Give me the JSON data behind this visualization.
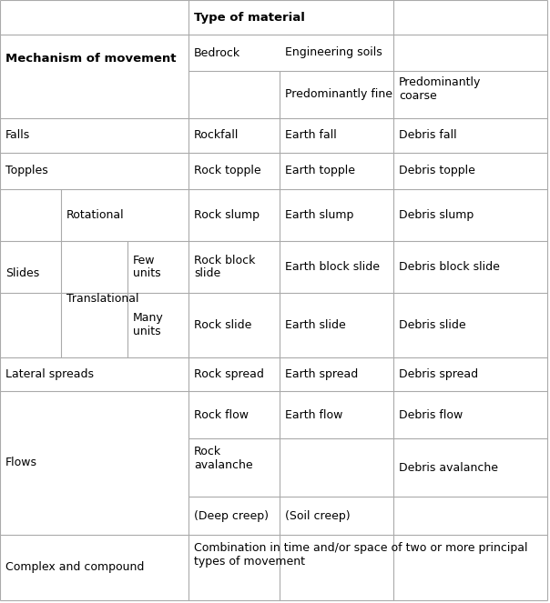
{
  "figsize": [
    6.04,
    6.63
  ],
  "dpi": 100,
  "bg": "#ffffff",
  "lc": "#aaaaaa",
  "lw": 0.8,
  "font": "DejaVu Sans",
  "fs": 9.0,
  "fs_bold": 9.5,
  "cols": [
    0,
    207,
    307,
    432,
    601
  ],
  "slides_cols": [
    0,
    67,
    140,
    207
  ],
  "rows": [
    0,
    38,
    78,
    130,
    168,
    208,
    208,
    265,
    322,
    393,
    430,
    482,
    546,
    588,
    660
  ],
  "texts": {
    "type_of_material": "Type of material",
    "mechanism": "Mechanism of movement",
    "bedrock": "Bedrock",
    "eng_soils": "Engineering soils",
    "pred_fine": "Predominantly fine",
    "pred_coarse": "Predominantly\ncoarse",
    "falls": "Falls",
    "rockfall": "Rockfall",
    "earth_fall": "Earth fall",
    "debris_fall": "Debris fall",
    "topples": "Topples",
    "rock_topple": "Rock topple",
    "earth_topple": "Earth topple",
    "debris_topple": "Debris topple",
    "slides": "Slides",
    "rotational": "Rotational",
    "rock_slump": "Rock slump",
    "earth_slump": "Earth slump",
    "debris_slump": "Debris slump",
    "translational": "Translational",
    "few_units": "Few\nunits",
    "rock_block_slide": "Rock block\nslide",
    "earth_block_slide": "Earth block slide",
    "debris_block_slide": "Debris block slide",
    "many_units": "Many\nunits",
    "rock_slide": "Rock slide",
    "earth_slide": "Earth slide",
    "debris_slide": "Debris slide",
    "lateral_spreads": "Lateral spreads",
    "rock_spread": "Rock spread",
    "earth_spread": "Earth spread",
    "debris_spread": "Debris spread",
    "flows": "Flows",
    "rock_flow": "Rock flow",
    "earth_flow": "Earth flow",
    "debris_flow": "Debris flow",
    "rock_avalanche": "Rock\navalanche",
    "debris_avalanche": "Debris avalanche",
    "deep_creep": "(Deep creep)",
    "soil_creep": "(Soil creep)",
    "complex": "Complex and compound",
    "combination": "Combination in time and/or space of two or more principal\ntypes of movement"
  }
}
